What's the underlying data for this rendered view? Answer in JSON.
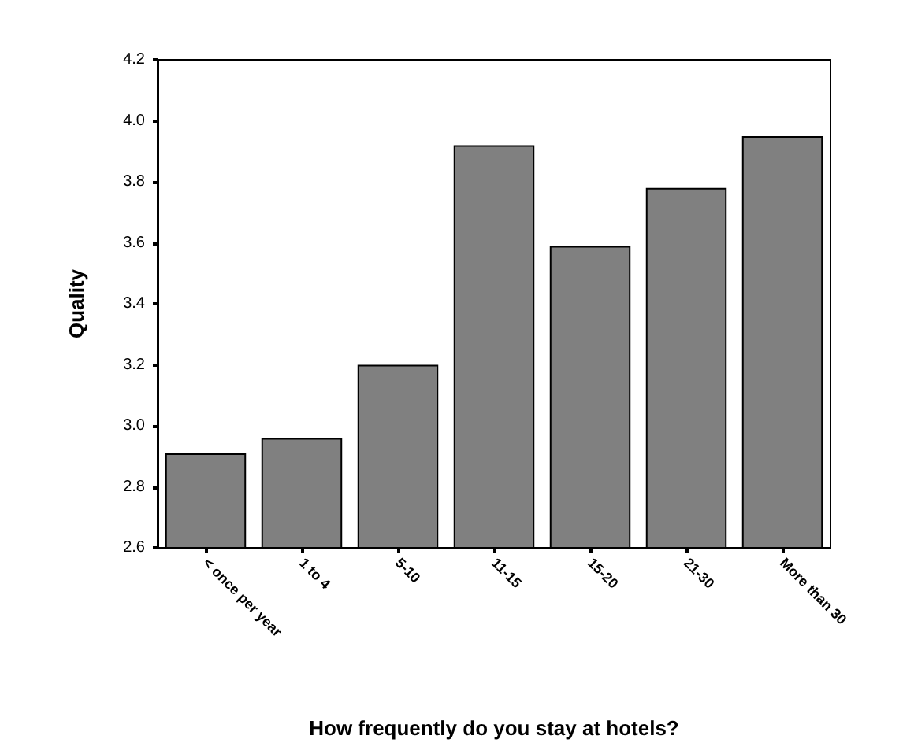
{
  "chart_data": {
    "type": "bar",
    "xlabel": "How frequently do you stay at hotels?",
    "ylabel": "Quality",
    "categories": [
      "< once per year",
      "1 to 4",
      "5-10",
      "11-15",
      "15-20",
      "21-30",
      "More than 30"
    ],
    "values": [
      2.91,
      2.96,
      3.2,
      3.92,
      3.59,
      3.78,
      3.95
    ],
    "color": "#808080",
    "ylim": [
      2.6,
      4.2
    ],
    "yticks": [
      {
        "value": 2.6,
        "label": "2.6"
      },
      {
        "value": 2.8,
        "label": "2.8"
      },
      {
        "value": 3,
        "label": "3.0"
      },
      {
        "value": 3.2,
        "label": "3.2"
      },
      {
        "value": 3.4,
        "label": "3.4"
      },
      {
        "value": 3.6,
        "label": "3.6"
      },
      {
        "value": 3.8,
        "label": "3.8"
      },
      {
        "value": 4,
        "label": "4.0"
      },
      {
        "value": 4.2,
        "label": "4.2"
      }
    ],
    "grid": false
  }
}
